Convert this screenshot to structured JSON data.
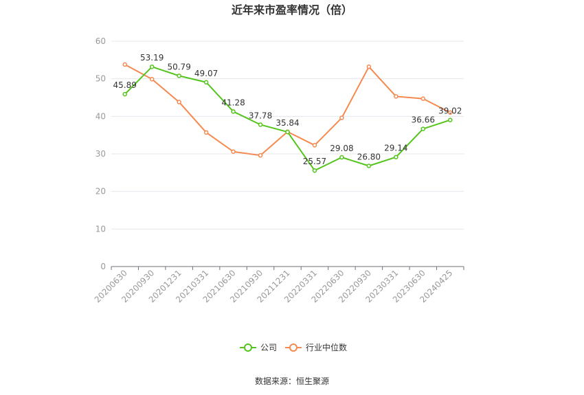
{
  "chart_data": {
    "type": "line",
    "title": "近年来市盈率情况（倍）",
    "categories": [
      "20200630",
      "20200930",
      "20201231",
      "20210331",
      "20210630",
      "20210930",
      "20211231",
      "20220331",
      "20220630",
      "20220930",
      "20230331",
      "20230630",
      "20240425"
    ],
    "series": [
      {
        "name": "公司",
        "color": "#52c41a",
        "values": [
          45.89,
          53.19,
          50.79,
          49.07,
          41.28,
          37.78,
          35.84,
          25.57,
          29.08,
          26.8,
          29.14,
          36.66,
          39.02
        ],
        "labels": [
          "45.89",
          "53.19",
          "50.79",
          "49.07",
          "41.28",
          "37.78",
          "35.84",
          "25.57",
          "29.08",
          "26.80",
          "29.14",
          "36.66",
          "39.02"
        ]
      },
      {
        "name": "行业中位数",
        "color": "#f5894f",
        "values": [
          53.8,
          49.9,
          43.8,
          35.7,
          30.6,
          29.6,
          35.9,
          32.3,
          39.6,
          53.2,
          45.3,
          44.7,
          41.0
        ]
      }
    ],
    "ylim": [
      0,
      60
    ],
    "yticks": [
      "0",
      "10",
      "20",
      "30",
      "40",
      "50",
      "60"
    ],
    "grid": true,
    "legend_position": "bottom-center"
  },
  "source_text": "数据来源：恒生聚源"
}
